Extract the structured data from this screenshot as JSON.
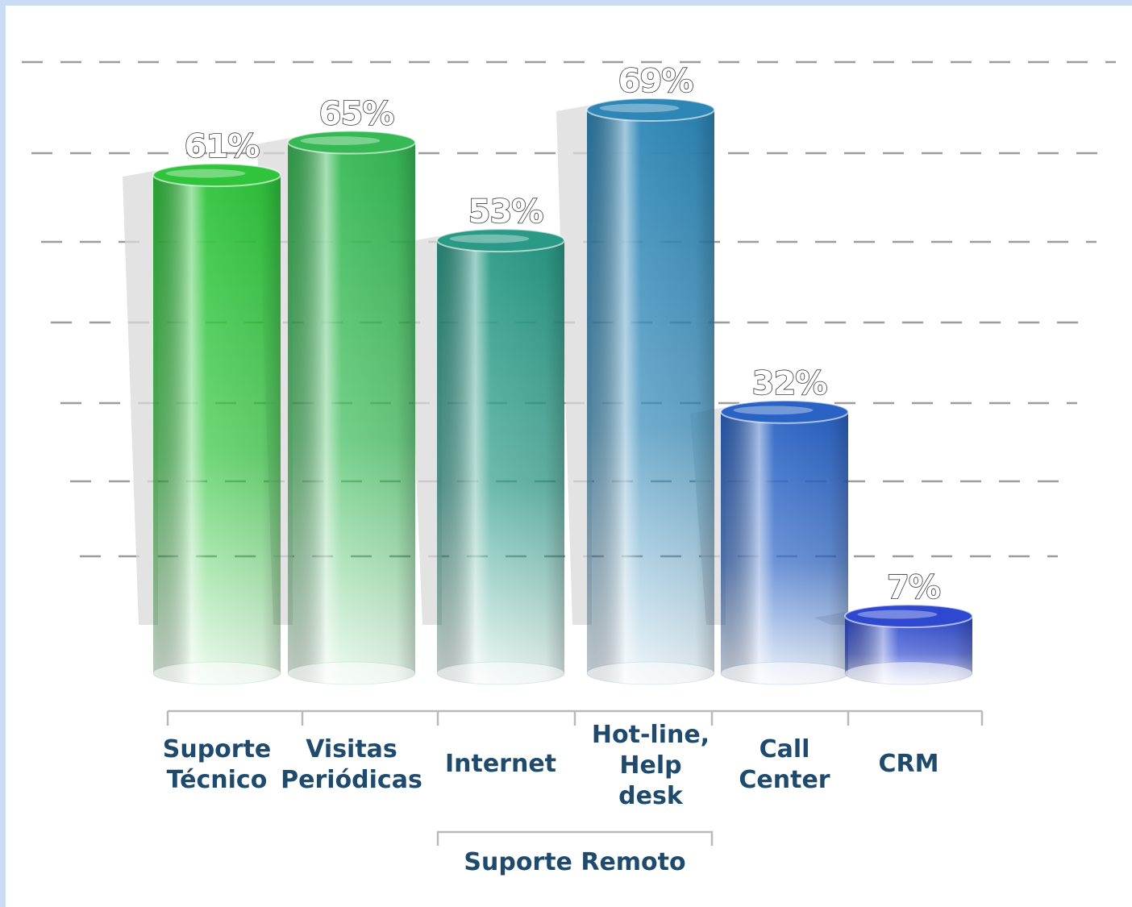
{
  "chart_data": {
    "type": "bar",
    "title": "",
    "xlabel": "",
    "ylabel": "",
    "categories": [
      [
        "Suporte",
        "Técnico"
      ],
      [
        "Visitas",
        "Periódicas"
      ],
      [
        "Internet"
      ],
      [
        "Hot-line,",
        "Help",
        "desk"
      ],
      [
        "Call",
        "Center"
      ],
      [
        "CRM"
      ]
    ],
    "values": [
      61,
      65,
      53,
      69,
      32,
      7
    ],
    "value_labels": [
      "61%",
      "65%",
      "53%",
      "69%",
      "32%",
      "7%"
    ],
    "ylim": [
      0,
      75
    ],
    "grid": true,
    "group": {
      "label": "Suporte Remoto",
      "members": [
        "Internet",
        "Hot-line, Help desk"
      ]
    },
    "colors": [
      "#2fc43c",
      "#36b954",
      "#2a9a86",
      "#2e86b6",
      "#2a63c4",
      "#2e49cf"
    ]
  }
}
